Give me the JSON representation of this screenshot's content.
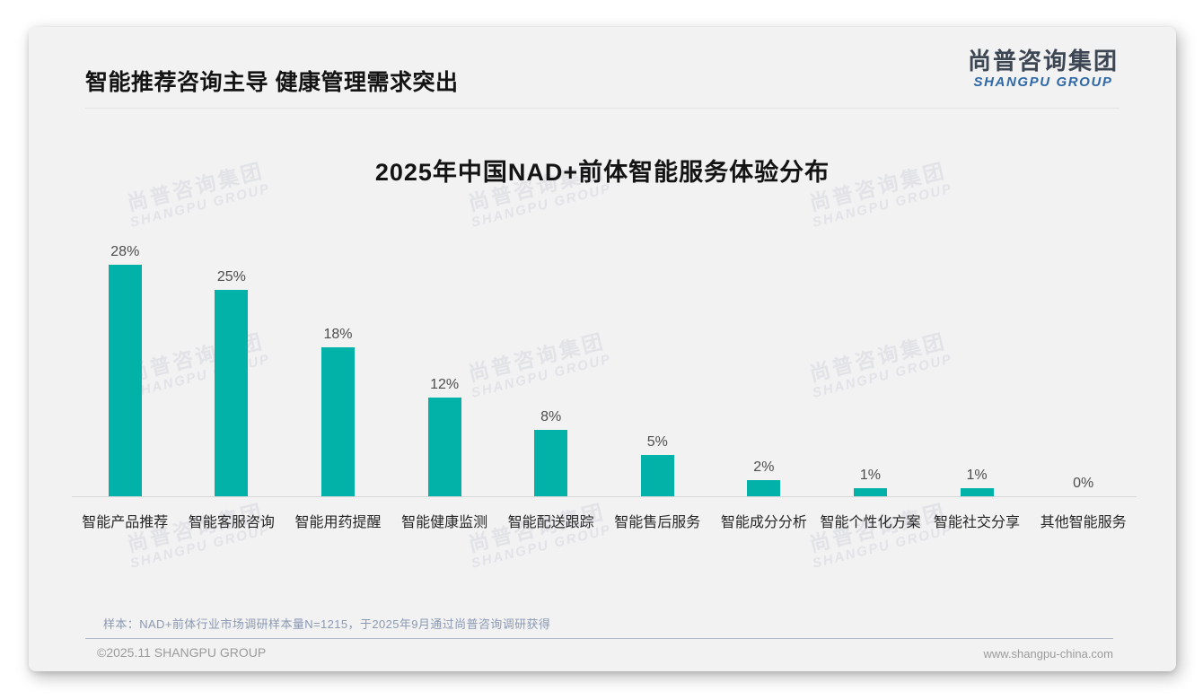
{
  "page": {
    "header": {
      "title": "智能推荐咨询主导 健康管理需求突出"
    },
    "logo": {
      "cn": "尚普咨询集团",
      "en": "SHANGPU GROUP"
    },
    "watermark": {
      "cn": "尚普咨询集团",
      "en": "SHANGPU GROUP"
    },
    "note": "样本：NAD+前体行业市场调研样本量N=1215，于2025年9月通过尚普咨询调研获得",
    "footer": {
      "copyright": "©2025.11 SHANGPU GROUP",
      "website": "www.shangpu-china.com"
    }
  },
  "chart_data": {
    "type": "bar",
    "title": "2025年中国NAD+前体智能服务体验分布",
    "categories": [
      "智能产品推荐",
      "智能客服咨询",
      "智能用药提醒",
      "智能健康监测",
      "智能配送跟踪",
      "智能售后服务",
      "智能成分分析",
      "智能个性化方案",
      "智能社交分享",
      "其他智能服务"
    ],
    "values": [
      28,
      25,
      18,
      12,
      8,
      5,
      2,
      1,
      1,
      0
    ],
    "value_labels": [
      "28%",
      "25%",
      "18%",
      "12%",
      "8%",
      "5%",
      "2%",
      "1%",
      "1%",
      "0%"
    ],
    "bar_color": "#02b1a8",
    "xlabel": "",
    "ylabel": "",
    "ylim": [
      0,
      31
    ],
    "grid": false,
    "legend": null,
    "y_axis_visible": false
  }
}
